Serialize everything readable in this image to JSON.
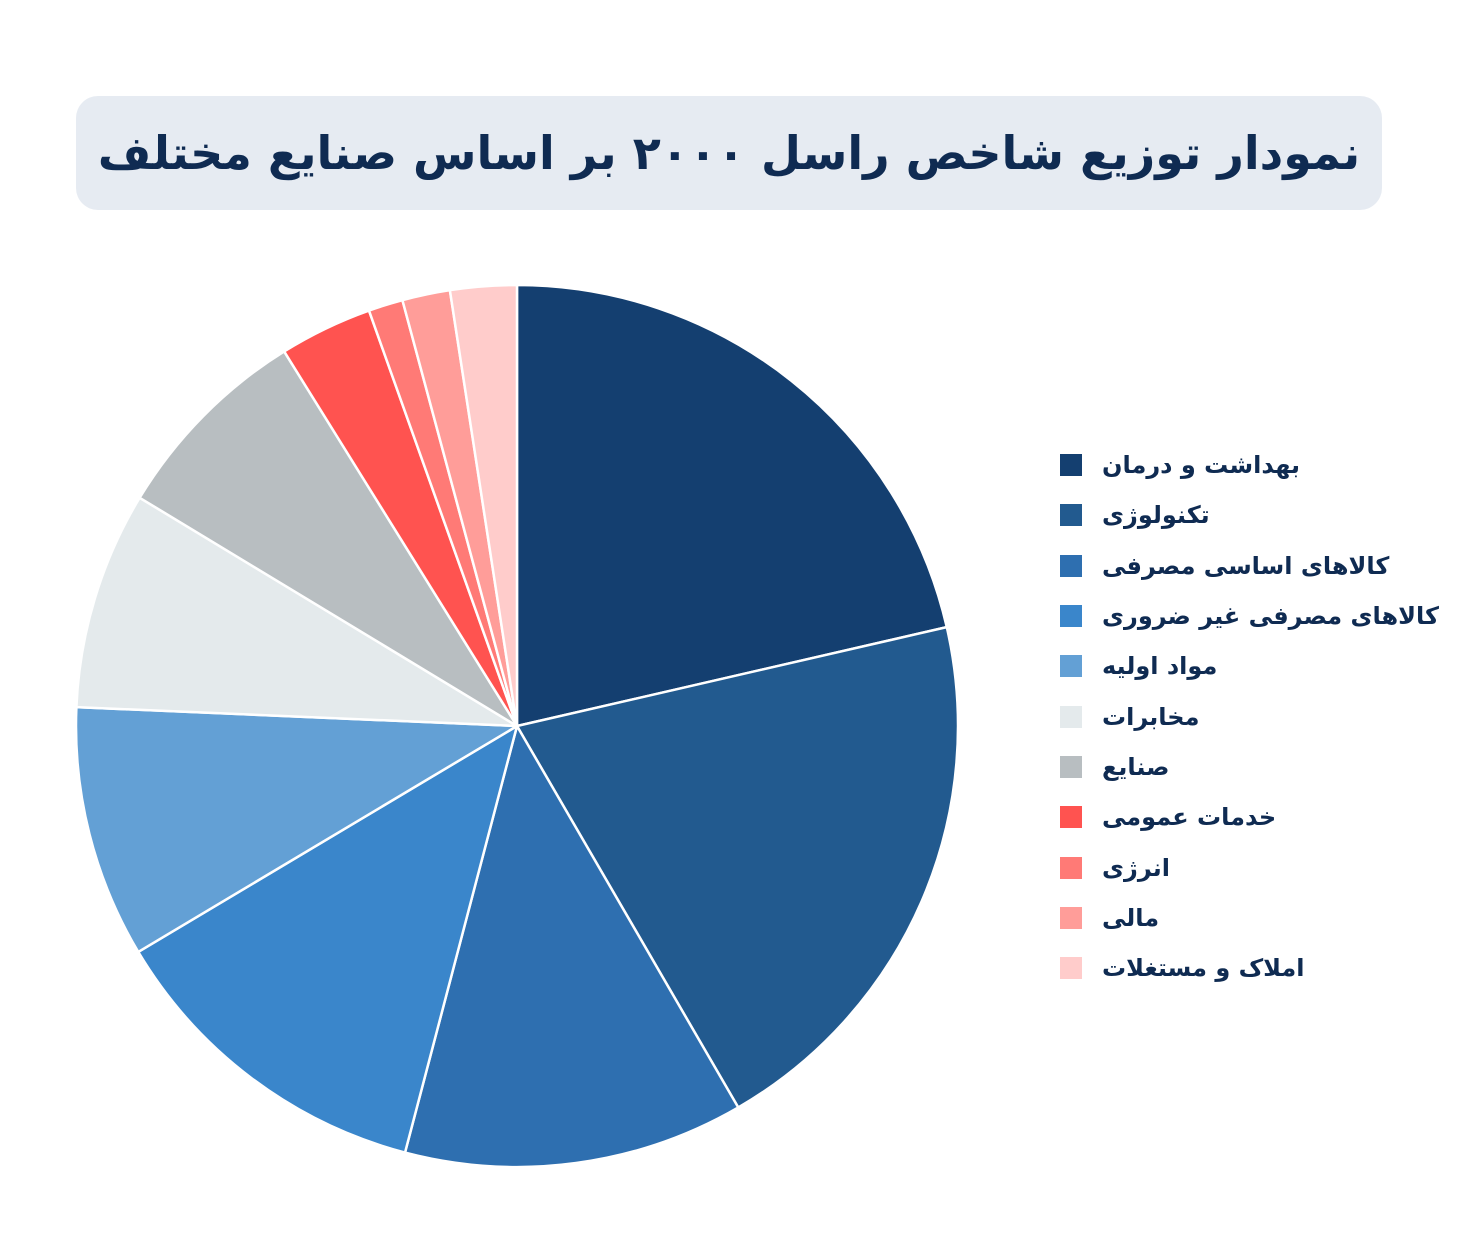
{
  "title": "نمودار توزیع شاخص راسل ۲۰۰۰ بر اساس صنایع مختلف",
  "chart_data": {
    "type": "pie",
    "title": "نمودار توزیع شاخص راسل ۲۰۰۰ بر اساس صنایع مختلف",
    "legend_position": "right",
    "slices": [
      {
        "label": "بهداشت و درمان",
        "value": 22.0,
        "color": "#143f70"
      },
      {
        "label": "تکنولوژی",
        "value": 20.8,
        "color": "#225a8f"
      },
      {
        "label": "کالاهای اساسی مصرفی",
        "value": 12.8,
        "color": "#2e6fb0"
      },
      {
        "label": "کالاهای مصرفی غیر ضروری",
        "value": 12.7,
        "color": "#3a86cb"
      },
      {
        "label": "مواد اولیه",
        "value": 9.5,
        "color": "#63a0d5"
      },
      {
        "label": "مخابرات",
        "value": 8.2,
        "color": "#e4eaec"
      },
      {
        "label": "صنایع",
        "value": 7.7,
        "color": "#b8bec1"
      },
      {
        "label": "خدمات عمومی",
        "value": 3.5,
        "color": "#ff5350"
      },
      {
        "label": "انرژی",
        "value": 1.3,
        "color": "#ff7a76"
      },
      {
        "label": "مالی",
        "value": 1.8,
        "color": "#ff9d99"
      },
      {
        "label": "املاک و مستغلات",
        "value": 2.5,
        "color": "#ffcccb"
      }
    ]
  }
}
